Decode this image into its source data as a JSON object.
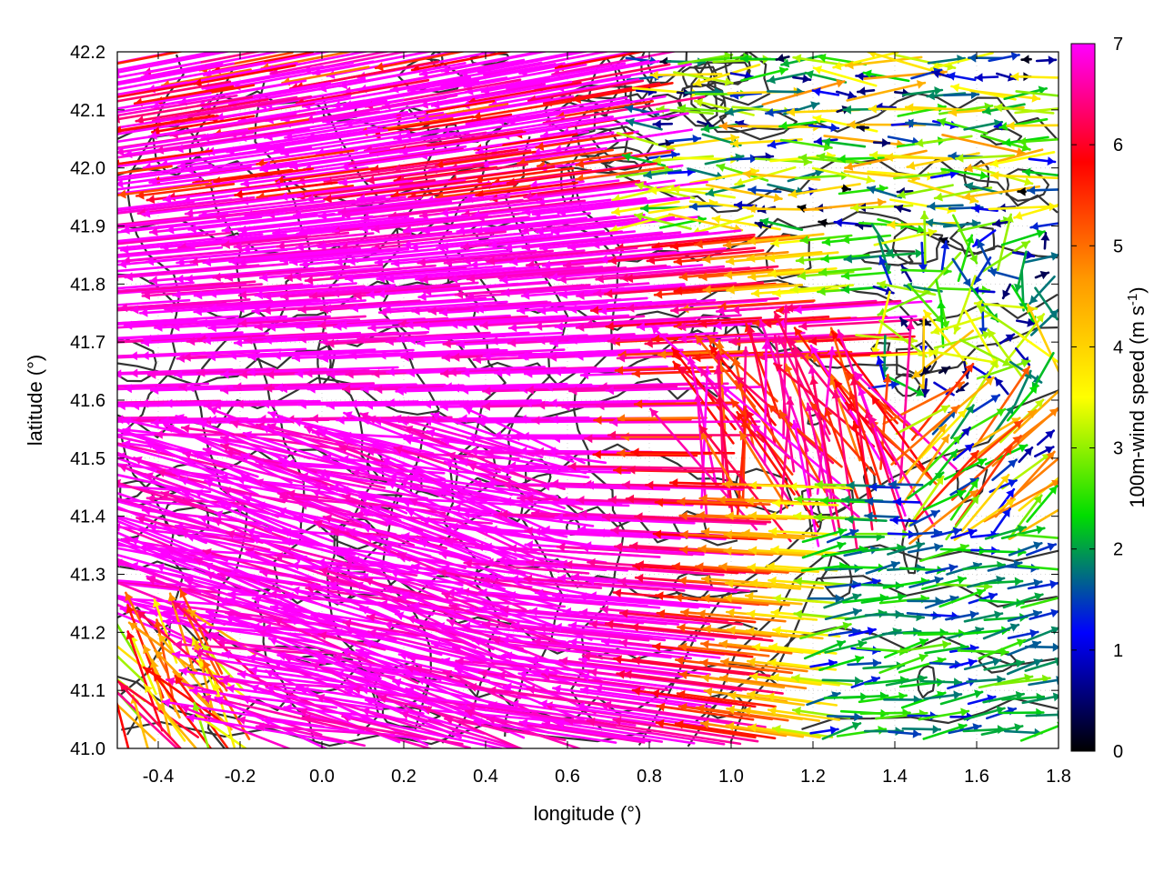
{
  "chart_data": {
    "type": "vector-field",
    "xlabel": "longitude (°)",
    "ylabel": "latitude (°)",
    "xlim": [
      -0.5,
      1.8
    ],
    "ylim": [
      41.0,
      42.2
    ],
    "xticks": [
      "-0.4",
      "-0.2",
      "0.0",
      "0.2",
      "0.4",
      "0.6",
      "0.8",
      "1.0",
      "1.2",
      "1.4",
      "1.6",
      "1.8"
    ],
    "yticks": [
      "41.0",
      "41.1",
      "41.2",
      "41.3",
      "41.4",
      "41.5",
      "41.6",
      "41.7",
      "41.8",
      "41.9",
      "42.0",
      "42.1",
      "42.2"
    ],
    "grid": true,
    "colorbar": {
      "label_main": "100m-wind speed (m s",
      "label_sup": "-1",
      "label_end": ")",
      "range": [
        0,
        7
      ],
      "ticks": [
        "0",
        "1",
        "2",
        "3",
        "4",
        "5",
        "6",
        "7"
      ],
      "palette": [
        "#000000",
        "#0000ff",
        "#00dd00",
        "#ffff00",
        "#ff9900",
        "#ff0000",
        "#ff00ff"
      ]
    },
    "wind_field_description": {
      "west_region_speed": 7,
      "west_region_direction": "from east (arrows pointing west)",
      "east_lowland_speed": 2,
      "east_lowland_direction": "from southwest (arrows pointing east/northeast)"
    },
    "contour_color": "#333333"
  }
}
